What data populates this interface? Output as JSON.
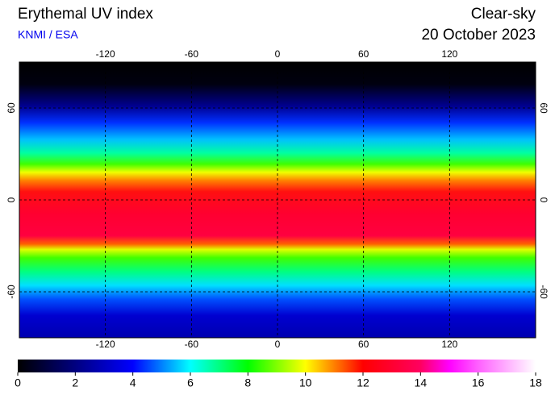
{
  "header": {
    "title": "Erythemal UV index",
    "source": "KNMI / ESA",
    "condition": "Clear-sky",
    "date": "20 October 2023"
  },
  "map": {
    "xlim": [
      -180,
      180
    ],
    "ylim": [
      -90,
      90
    ],
    "xticks": [
      -120,
      -60,
      0,
      60,
      120
    ],
    "yticks": [
      60,
      0,
      -60
    ],
    "grid": true
  },
  "colorbar": {
    "lim": [
      0,
      18
    ],
    "ticks": [
      0,
      2,
      4,
      6,
      8,
      10,
      12,
      14,
      16,
      18
    ],
    "colors": [
      {
        "value": 0,
        "color": "#000000"
      },
      {
        "value": 2,
        "color": "#000080"
      },
      {
        "value": 4,
        "color": "#0000ff"
      },
      {
        "value": 5,
        "color": "#0080ff"
      },
      {
        "value": 6,
        "color": "#00ffff"
      },
      {
        "value": 7,
        "color": "#00ff80"
      },
      {
        "value": 8,
        "color": "#00ff00"
      },
      {
        "value": 9,
        "color": "#80ff00"
      },
      {
        "value": 10,
        "color": "#ffff00"
      },
      {
        "value": 11,
        "color": "#ff8000"
      },
      {
        "value": 12,
        "color": "#ff0000"
      },
      {
        "value": 14,
        "color": "#ff0060"
      },
      {
        "value": 15,
        "color": "#ff00ff"
      },
      {
        "value": 16,
        "color": "#ff60ff"
      },
      {
        "value": 18,
        "color": "#ffffff"
      }
    ]
  }
}
